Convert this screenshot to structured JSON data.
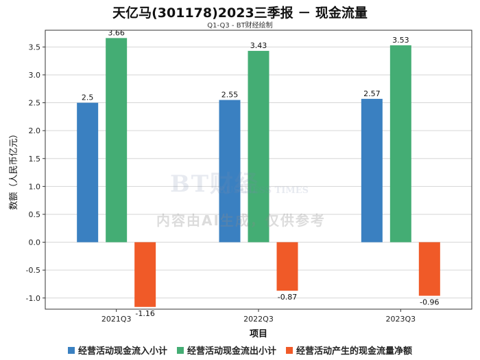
{
  "chart_data": {
    "type": "bar",
    "title": "天亿马(301178)2023三季报 － 现金流量",
    "subtitle": "Q1-Q3 - BT财经绘制",
    "xlabel": "项目",
    "ylabel": "数额（人民币亿元）",
    "categories": [
      "2021Q3",
      "2022Q3",
      "2023Q3"
    ],
    "ylim": [
      -1.2,
      3.8
    ],
    "yticks": [
      -1.0,
      -0.5,
      0.0,
      0.5,
      1.0,
      1.5,
      2.0,
      2.5,
      3.0,
      3.5
    ],
    "ytick_labels": [
      "-1.0",
      "-0.5",
      "0.0",
      "0.5",
      "1.0",
      "1.5",
      "2.0",
      "2.5",
      "3.0",
      "3.5"
    ],
    "grid": true,
    "legend_position": "bottom",
    "series": [
      {
        "name": "经营活动现金流入小计",
        "color": "#3a80c1",
        "values": [
          2.5,
          2.55,
          2.57
        ],
        "labels": [
          "2.5",
          "2.55",
          "2.57"
        ]
      },
      {
        "name": "经营活动现金流出小计",
        "color": "#44ad74",
        "values": [
          3.66,
          3.43,
          3.53
        ],
        "labels": [
          "3.66",
          "3.43",
          "3.53"
        ]
      },
      {
        "name": "经营活动产生的现金流量净额",
        "color": "#f05a28",
        "values": [
          -1.16,
          -0.87,
          -0.96
        ],
        "labels": [
          "-1.16",
          "-0.87",
          "-0.96"
        ]
      }
    ]
  },
  "watermark": {
    "brand": "BT财经",
    "brand_en": "BUSINESS TIMES",
    "notice": "内容由AI生成，仅供参考"
  }
}
